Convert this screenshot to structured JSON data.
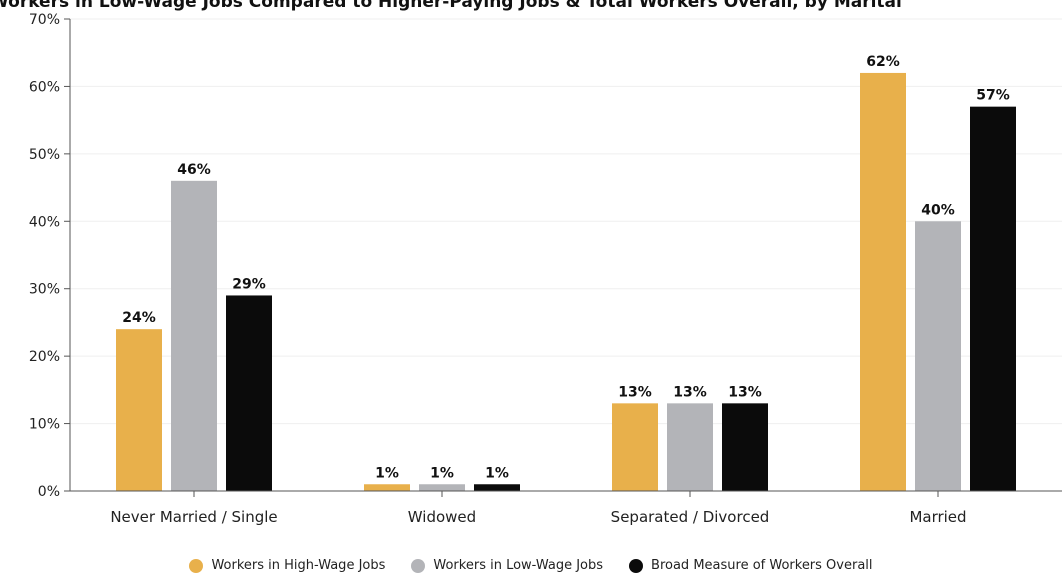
{
  "chart_data": {
    "type": "bar",
    "title": "Workers in Low-Wage Jobs Compared to Higher-Paying Jobs & Total Workers Overall, by Marital",
    "categories": [
      "Never Married / Single",
      "Widowed",
      "Separated / Divorced",
      "Married"
    ],
    "series": [
      {
        "name": "Workers in High-Wage Jobs",
        "color": "#e8b04b",
        "values": [
          24,
          1,
          13,
          62
        ],
        "labels": [
          "24%",
          "1%",
          "13%",
          "62%"
        ]
      },
      {
        "name": "Workers in Low-Wage Jobs",
        "color": "#b3b4b8",
        "values": [
          46,
          1,
          13,
          40
        ],
        "labels": [
          "46%",
          "1%",
          "13%",
          "40%"
        ]
      },
      {
        "name": "Broad Measure of Workers Overall",
        "color": "#0b0b0b",
        "values": [
          29,
          1,
          13,
          57
        ],
        "labels": [
          "29%",
          "1%",
          "13%",
          "57%"
        ]
      }
    ],
    "yticks": [
      "0%",
      "10%",
      "20%",
      "30%",
      "40%",
      "50%",
      "60%",
      "70%"
    ],
    "ylim": [
      0,
      70
    ],
    "xlabel": "",
    "ylabel": "",
    "grid": true,
    "legend": "bottom"
  }
}
